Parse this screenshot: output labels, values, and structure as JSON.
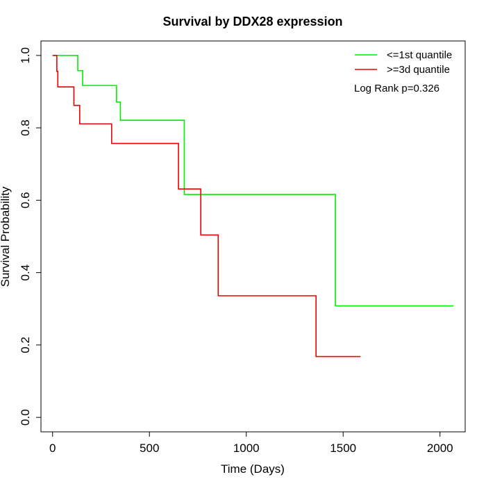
{
  "chart_data": {
    "type": "line",
    "step": true,
    "title": "Survival by DDX28 expression",
    "xlabel": "Time (Days)",
    "ylabel": "Survival Probability",
    "xlim": [
      -60,
      2130
    ],
    "ylim": [
      -0.04,
      1.04
    ],
    "xticks": [
      0,
      500,
      1000,
      1500,
      2000
    ],
    "xtick_labels": [
      "0",
      "500",
      "1000",
      "1500",
      "2000"
    ],
    "yticks": [
      0.0,
      0.2,
      0.4,
      0.6,
      0.8,
      1.0
    ],
    "ytick_labels": [
      "0.0",
      "0.2",
      "0.4",
      "0.6",
      "0.8",
      "1.0"
    ],
    "grid": false,
    "legend_position": "top-right",
    "annotation": "Log Rank p=0.326",
    "series": [
      {
        "name": "<=1st quantile",
        "color": "#00ee00",
        "x": [
          0,
          130,
          155,
          330,
          350,
          680,
          1460,
          2070
        ],
        "y": [
          1.0,
          0.958,
          0.917,
          0.871,
          0.821,
          0.616,
          0.308,
          0.308
        ]
      },
      {
        "name": ">=3d quantile",
        "color": "#ee0000",
        "x": [
          0,
          22,
          27,
          110,
          140,
          305,
          650,
          765,
          855,
          1360,
          1590
        ],
        "y": [
          1.0,
          0.956,
          0.913,
          0.862,
          0.811,
          0.757,
          0.631,
          0.504,
          0.336,
          0.168,
          0.168
        ]
      }
    ]
  }
}
